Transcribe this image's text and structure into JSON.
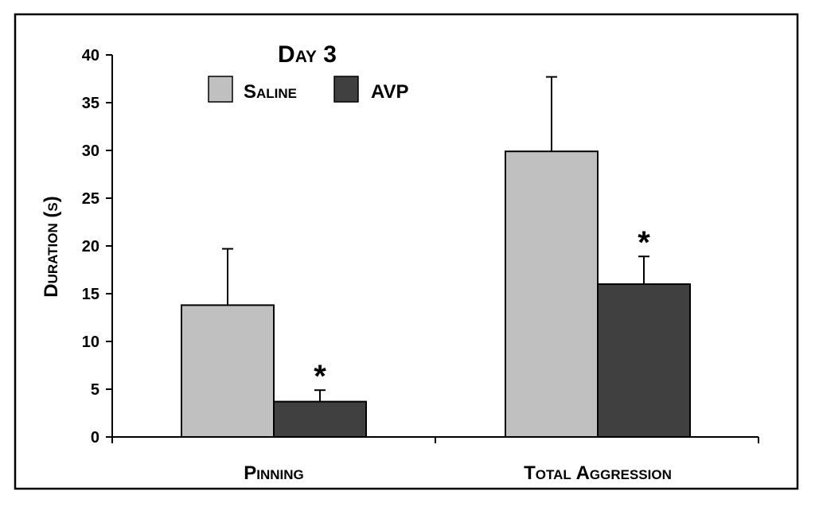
{
  "chart_data": {
    "type": "bar",
    "title": "Day 3",
    "xlabel": "",
    "ylabel": "Duration (s)",
    "ylim": [
      0,
      40
    ],
    "yticks": [
      "0",
      "5",
      "10",
      "15",
      "20",
      "25",
      "30",
      "35",
      "40"
    ],
    "categories": [
      "Pinning",
      "Total Aggression"
    ],
    "series": [
      {
        "name": "Saline",
        "color": "#c0c0c0",
        "values": [
          13.8,
          29.9
        ],
        "errors": [
          5.9,
          7.8
        ],
        "significance": [
          "",
          ""
        ]
      },
      {
        "name": "AVP",
        "color": "#404040",
        "values": [
          3.7,
          16.0
        ],
        "errors": [
          1.2,
          2.9
        ],
        "significance": [
          "*",
          "*"
        ]
      }
    ],
    "legend_position": "top-left"
  }
}
